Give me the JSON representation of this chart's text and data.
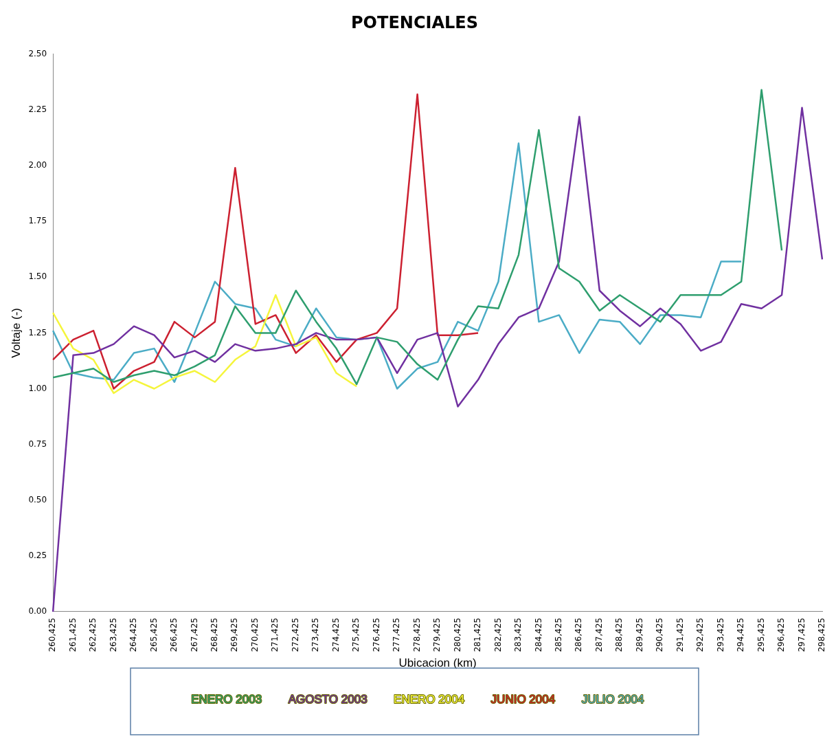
{
  "chart_data": {
    "type": "line",
    "title": "POTENCIALES",
    "xlabel": "Ubicacion (km)",
    "ylabel": "Voltaje (-)",
    "categories": [
      "260,425",
      "261,425",
      "262,425",
      "263,425",
      "264,425",
      "265,425",
      "266,425",
      "267,425",
      "268,425",
      "269,425",
      "270,425",
      "271,425",
      "272,425",
      "273,425",
      "274,425",
      "275,425",
      "276,425",
      "277,425",
      "278,425",
      "279,425",
      "280,425",
      "281,425",
      "282,425",
      "283,425",
      "284,425",
      "285,425",
      "286,425",
      "287,425",
      "288,425",
      "289,425",
      "290,425",
      "291,425",
      "292,425",
      "293,425",
      "294,425",
      "295,425",
      "296,425",
      "297,425",
      "298,425"
    ],
    "series": [
      {
        "name": "ENERO 2003",
        "color": "#2e9e6e",
        "values": [
          1.05,
          1.07,
          1.09,
          1.03,
          1.06,
          1.08,
          1.06,
          1.1,
          1.15,
          1.37,
          1.25,
          1.25,
          1.44,
          1.3,
          1.18,
          1.02,
          1.23,
          1.21,
          1.11,
          1.04,
          1.22,
          1.37,
          1.36,
          1.6,
          2.16,
          1.54,
          1.48,
          1.35,
          1.42,
          1.36,
          1.3,
          1.42,
          1.42,
          1.42,
          1.48,
          2.34,
          1.62,
          null,
          null
        ]
      },
      {
        "name": "AGOSTO 2003",
        "color": "#7030a0",
        "values": [
          0.0,
          1.15,
          1.16,
          1.2,
          1.28,
          1.24,
          1.14,
          1.17,
          1.12,
          1.2,
          1.17,
          1.18,
          1.2,
          1.25,
          1.22,
          1.22,
          1.23,
          1.07,
          1.22,
          1.25,
          0.92,
          1.04,
          1.2,
          1.32,
          1.36,
          1.57,
          2.22,
          1.44,
          1.35,
          1.28,
          1.36,
          1.29,
          1.17,
          1.21,
          1.38,
          1.36,
          1.42,
          2.26,
          1.58
        ]
      },
      {
        "name": "ENERO 2004",
        "color": "#f5f53c",
        "values": [
          1.34,
          1.18,
          1.13,
          0.98,
          1.04,
          1.0,
          1.05,
          1.08,
          1.03,
          1.13,
          1.19,
          1.42,
          1.19,
          1.23,
          1.07,
          1.01,
          null,
          null,
          null,
          null,
          null,
          null,
          null,
          null,
          null,
          null,
          null,
          null,
          null,
          null,
          null,
          null,
          null,
          null,
          null,
          null,
          null,
          null,
          null
        ]
      },
      {
        "name": "JUNIO 2004",
        "color": "#cc2030",
        "values": [
          1.13,
          1.22,
          1.26,
          1.0,
          1.08,
          1.12,
          1.3,
          1.23,
          1.3,
          1.99,
          1.29,
          1.33,
          1.16,
          1.24,
          1.12,
          1.22,
          1.25,
          1.36,
          2.32,
          1.24,
          1.24,
          1.25,
          null,
          null,
          null,
          null,
          null,
          null,
          null,
          null,
          null,
          null,
          null,
          null,
          null,
          null,
          null,
          null,
          null
        ]
      },
      {
        "name": "JULIO 2004",
        "color": "#4bacc6",
        "values": [
          1.26,
          1.07,
          1.05,
          1.04,
          1.16,
          1.18,
          1.03,
          1.25,
          1.48,
          1.38,
          1.36,
          1.22,
          1.19,
          1.36,
          1.23,
          1.22,
          1.23,
          1.0,
          1.09,
          1.12,
          1.3,
          1.26,
          1.48,
          2.1,
          1.3,
          1.33,
          1.16,
          1.31,
          1.3,
          1.2,
          1.33,
          1.33,
          1.32,
          1.57,
          1.57,
          null,
          null,
          null,
          null
        ]
      }
    ],
    "ylim": [
      0,
      2.5
    ],
    "yticks": [
      {
        "value": 0,
        "label": "0.00"
      },
      {
        "value": 0.25,
        "label": "0.25"
      },
      {
        "value": 0.5,
        "label": "0.50"
      },
      {
        "value": 0.75,
        "label": "0.75"
      },
      {
        "value": 1,
        "label": "1.00"
      },
      {
        "value": 1.25,
        "label": "1.25"
      },
      {
        "value": 1.5,
        "label": "1.50"
      },
      {
        "value": 1.75,
        "label": "1.75"
      },
      {
        "value": 2,
        "label": "2.00"
      },
      {
        "value": 2.25,
        "label": "2.25"
      },
      {
        "value": 2.5,
        "label": "2.50"
      }
    ],
    "grid": false,
    "legend": "bottom",
    "marker": "none",
    "line_style": "solid"
  }
}
